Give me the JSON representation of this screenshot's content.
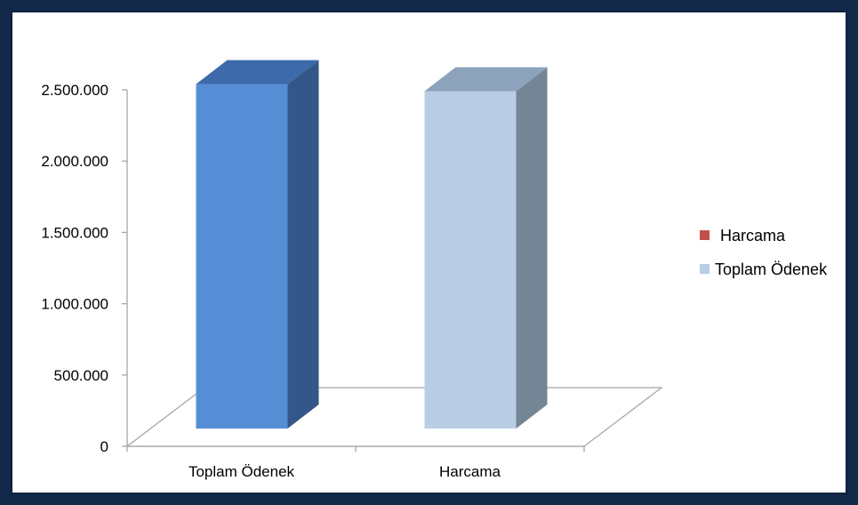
{
  "chart_data": {
    "type": "bar",
    "style": "3d-column",
    "categories": [
      "Toplam Ödenek",
      "Harcama"
    ],
    "values": [
      2540000,
      2490000
    ],
    "yticks": [
      "0",
      "500.000",
      "1.000.000",
      "1.500.000",
      "2.000.000",
      "2.500.000"
    ],
    "ylim": [
      0,
      2500000
    ],
    "grid": false,
    "legend": {
      "placement": "right",
      "items": [
        {
          "label": "Harcama",
          "color": "#c0504d"
        },
        {
          "label": "Toplam Ödenek",
          "color": "#b9cde5"
        }
      ]
    },
    "colors": {
      "bar_front": [
        "#558ed5",
        "#b9cde5"
      ],
      "bar_top": [
        "#3c6aab",
        "#8da3bc"
      ],
      "bar_side": [
        "#345789",
        "#748695"
      ],
      "frame": "#12294a",
      "axis": "#a6a6a6"
    }
  }
}
